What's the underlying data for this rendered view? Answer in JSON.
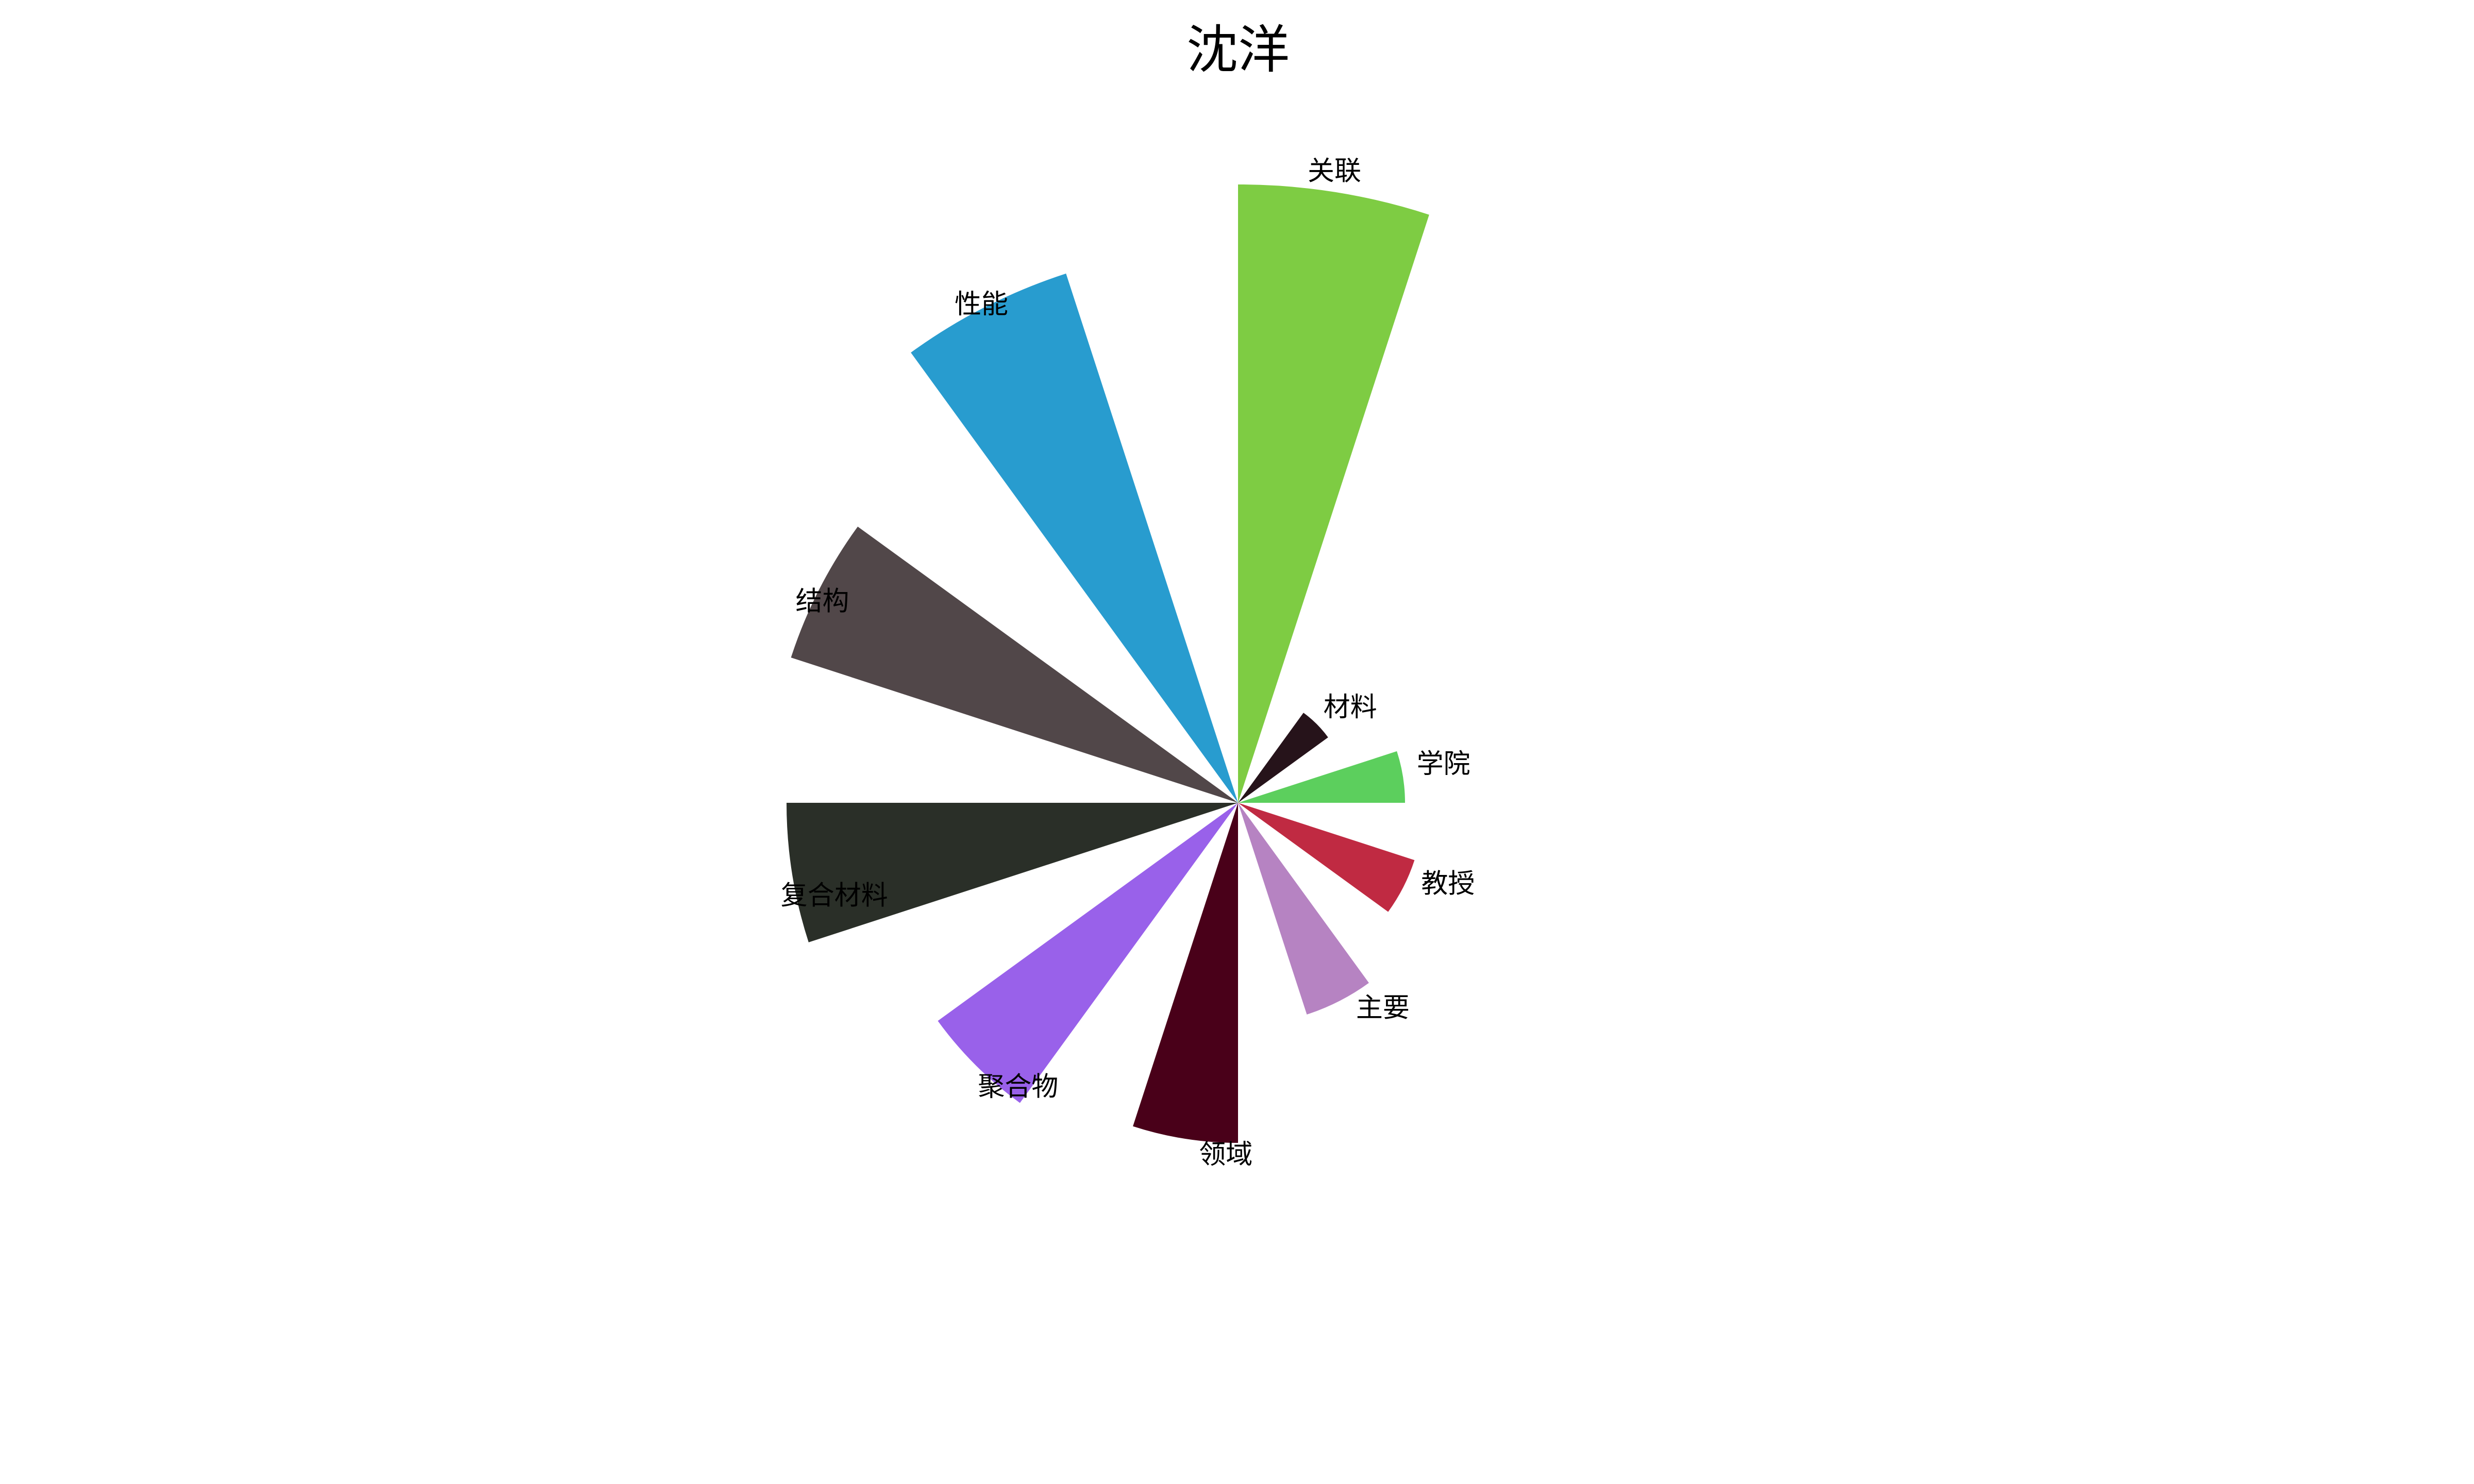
{
  "chart_data": {
    "type": "pie",
    "subtype": "nightingale-rose",
    "title": "沈洋",
    "start_angle_deg": 90,
    "direction": "clockwise",
    "categories": [
      "关联",
      "材料",
      "学院",
      "教授",
      "主要",
      "领域",
      "聚合物",
      "复合材料",
      "结构",
      "性能"
    ],
    "values": [
      100,
      18,
      27,
      30,
      36,
      55,
      60,
      73,
      76,
      90
    ],
    "colors": [
      "#7ecc43",
      "#26131a",
      "#5ccf5d",
      "#c02a42",
      "#b683c2",
      "#490019",
      "#9961ea",
      "#2a2f28",
      "#514749",
      "#289ccf"
    ],
    "legend": "none",
    "grid": false
  }
}
